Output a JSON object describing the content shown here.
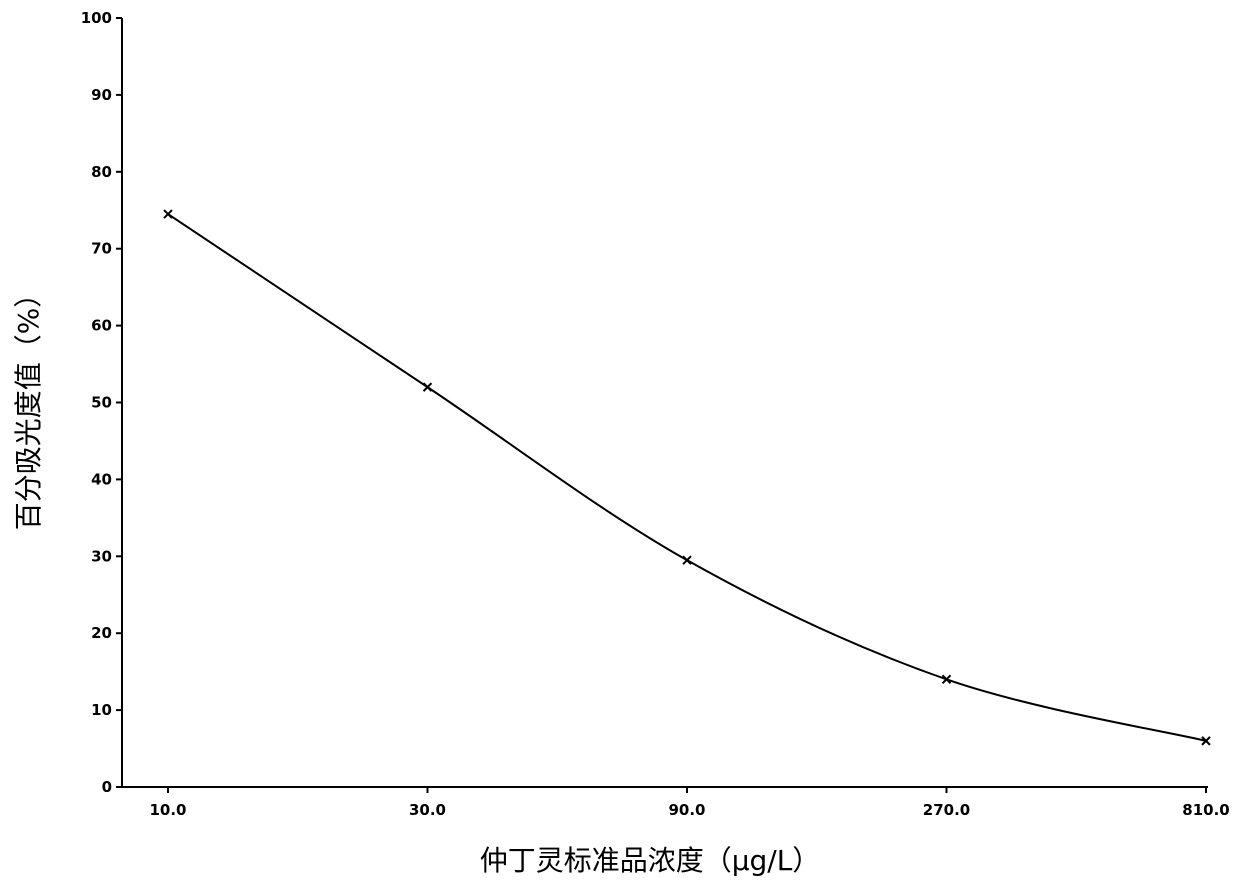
{
  "chart_data": {
    "type": "line",
    "title": "",
    "xlabel": "仲丁灵标准品浓度（μg/L）",
    "ylabel": "百分吸光度值（%）",
    "x_scale": "log",
    "categories": [
      "10.0",
      "30.0",
      "90.0",
      "270.0",
      "810.0"
    ],
    "x": [
      10.0,
      30.0,
      90.0,
      270.0,
      810.0
    ],
    "series": [
      {
        "values": [
          74.5,
          52.0,
          29.5,
          14.0,
          6.0
        ],
        "marker": "x",
        "smooth": true,
        "color": "#000000"
      }
    ],
    "ylim": [
      0,
      100
    ],
    "yticks": [
      0,
      10,
      20,
      30,
      40,
      50,
      60,
      70,
      80,
      90,
      100
    ],
    "grid": false,
    "legend": "none"
  }
}
